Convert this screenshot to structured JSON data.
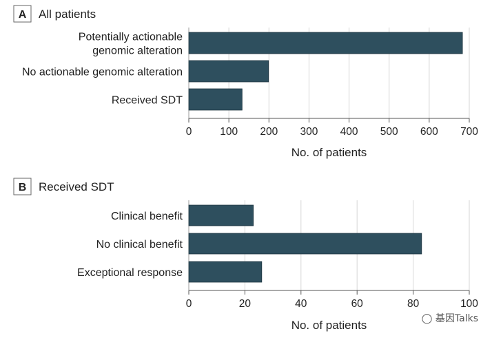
{
  "watermark": "基因Talks",
  "chart_data": [
    {
      "type": "bar",
      "orientation": "horizontal",
      "panel_letter": "A",
      "title": "All patients",
      "categories": [
        [
          "Potentially actionable",
          "genomic alteration"
        ],
        [
          "No actionable genomic alteration"
        ],
        [
          "Received SDT"
        ]
      ],
      "values": [
        683,
        199,
        133
      ],
      "xlabel": "No. of patients",
      "xlim": [
        0,
        700
      ],
      "xticks": [
        0,
        100,
        200,
        300,
        400,
        500,
        600,
        700
      ],
      "grid": "vertical",
      "bar_color": "#2e4f5e"
    },
    {
      "type": "bar",
      "orientation": "horizontal",
      "panel_letter": "B",
      "title": "Received SDT",
      "categories": [
        [
          "Clinical benefit"
        ],
        [
          "No clinical benefit"
        ],
        [
          "Exceptional response"
        ]
      ],
      "values": [
        23,
        83,
        26
      ],
      "xlabel": "No. of patients",
      "xlim": [
        0,
        100
      ],
      "xticks": [
        0,
        20,
        40,
        60,
        80,
        100
      ],
      "grid": "vertical",
      "bar_color": "#2e4f5e"
    }
  ]
}
